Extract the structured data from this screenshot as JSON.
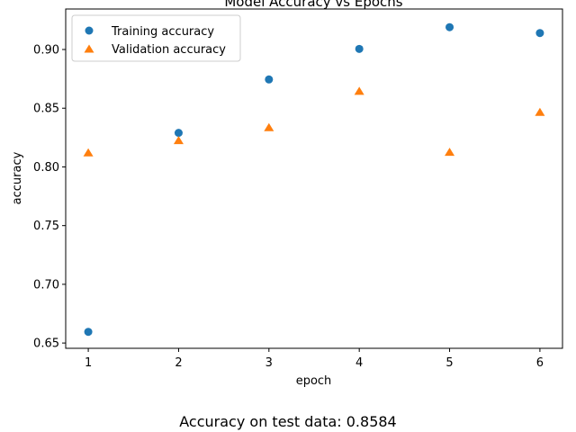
{
  "chart_data": {
    "type": "scatter",
    "title": "Model Accuracy vs Epochs",
    "xlabel": "epoch",
    "ylabel": "accuracy",
    "xlim": [
      0.75,
      6.25
    ],
    "ylim": [
      0.6455,
      0.9345
    ],
    "xticks": [
      1,
      2,
      3,
      4,
      5,
      6
    ],
    "yticks": [
      0.65,
      0.7,
      0.75,
      0.8,
      0.85,
      0.9
    ],
    "ytick_labels": [
      "0.65",
      "0.70",
      "0.75",
      "0.80",
      "0.85",
      "0.90"
    ],
    "grid": false,
    "legend_position": "top-left",
    "series": [
      {
        "name": "Training accuracy",
        "marker": "circle",
        "color": "#1f77b4",
        "x": [
          1,
          2,
          3,
          4,
          5,
          6
        ],
        "values": [
          0.6595,
          0.829,
          0.8745,
          0.9005,
          0.919,
          0.914
        ]
      },
      {
        "name": "Validation accuracy",
        "marker": "triangle",
        "color": "#ff7f0e",
        "x": [
          1,
          2,
          3,
          4,
          5,
          6
        ],
        "values": [
          0.812,
          0.8225,
          0.8335,
          0.8645,
          0.8125,
          0.8465
        ]
      }
    ]
  },
  "caption": "Accuracy on test data: 0.8584"
}
